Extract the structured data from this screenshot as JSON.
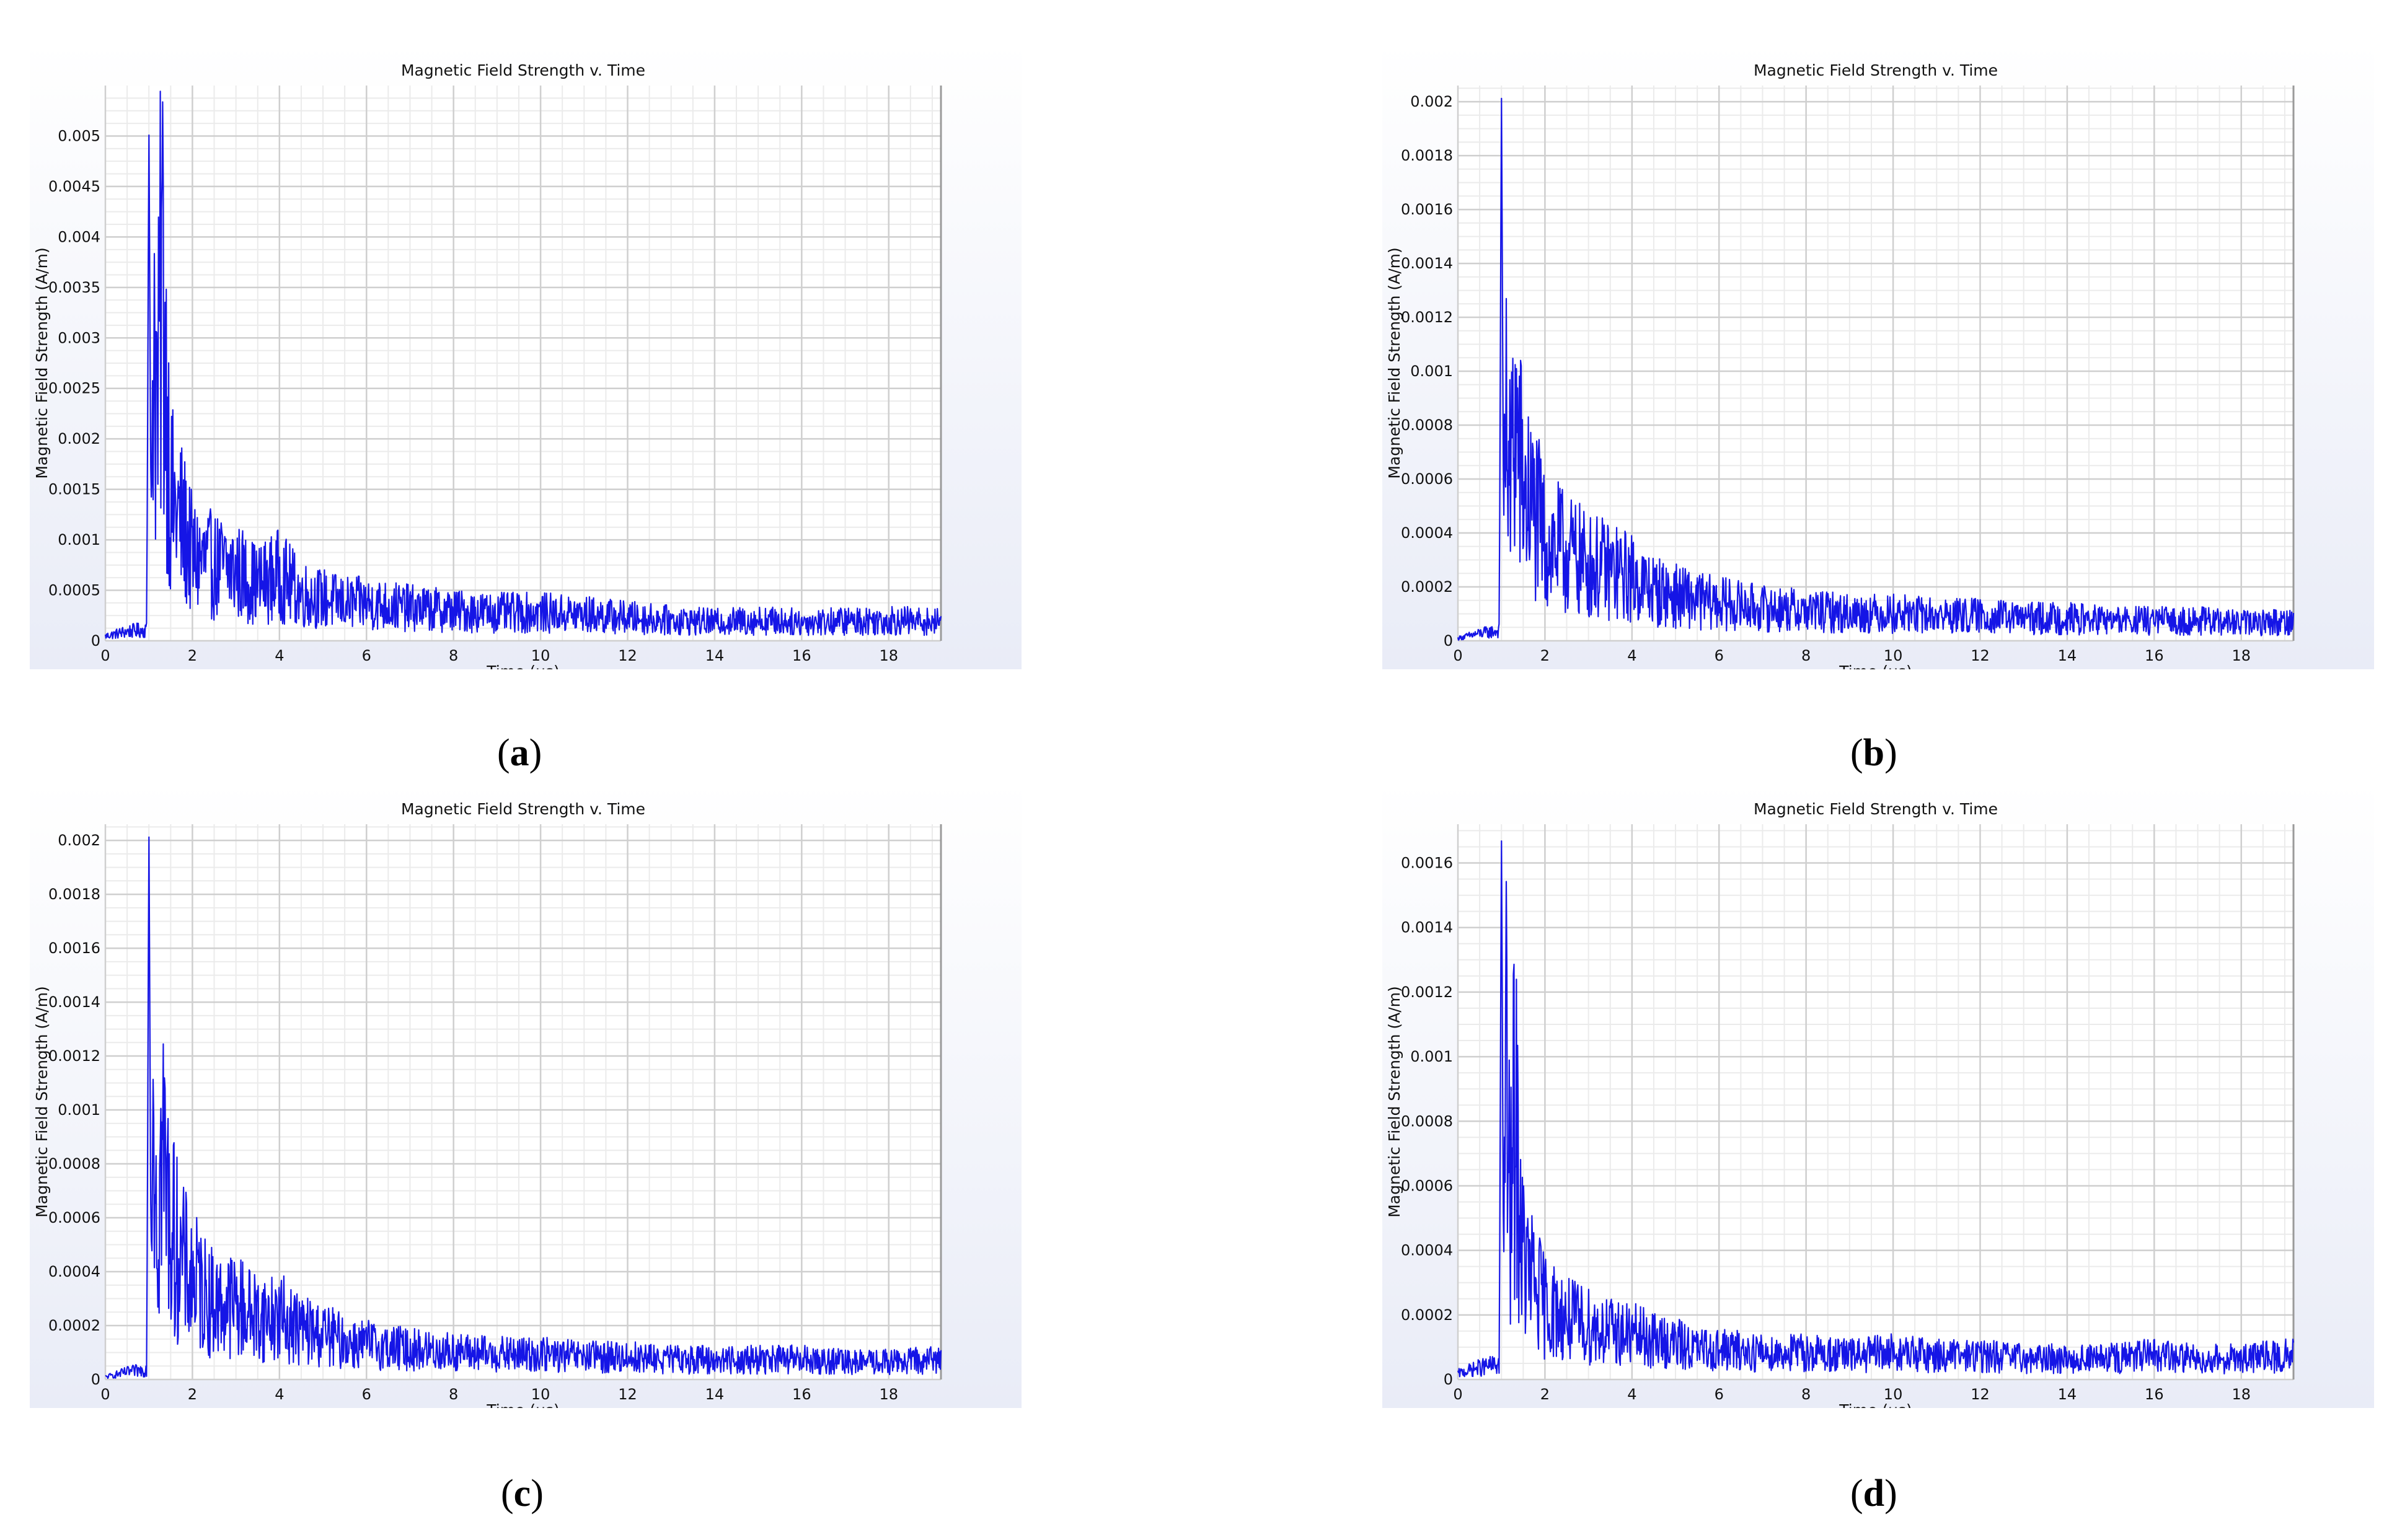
{
  "colors": {
    "line": "#1515e6",
    "panel_bg_top": "#ffffff",
    "panel_bg_bottom": "#e9ecf7",
    "grid_major": "#cfcfcf",
    "grid_minor": "#ebebeb"
  },
  "chart_data": [
    {
      "type": "line",
      "title": "Magnetic Field Strength v. Time",
      "xlabel": "Time (us)",
      "ylabel": "Magnetic Field Strength (A/m)",
      "xlim": [
        0,
        19.2
      ],
      "ylim": [
        0,
        0.0055
      ],
      "xticks": [
        "0",
        "2",
        "4",
        "6",
        "8",
        "10",
        "12",
        "14",
        "16",
        "18"
      ],
      "yticks": [
        "0",
        "0.0005",
        "0.001",
        "0.0015",
        "0.002",
        "0.0025",
        "0.003",
        "0.0035",
        "0.004",
        "0.0045",
        "0.005"
      ],
      "grid": true,
      "series": [
        {
          "x": [
            0,
            0.5,
            0.95,
            1.0,
            1.05,
            1.1,
            1.2,
            1.3,
            1.5,
            1.8,
            2.0,
            2.5,
            3.0,
            3.5,
            4.0,
            4.5,
            5.0,
            5.5,
            6,
            7,
            8,
            9,
            10,
            11,
            12,
            13,
            14,
            15,
            16,
            17,
            18,
            19.2
          ],
          "y": [
            5e-05,
            0.0001,
            0.00012,
            0.0051,
            0.0011,
            0.0038,
            0.0023,
            0.0041,
            0.0015,
            0.0012,
            0.0009,
            0.0008,
            0.00075,
            0.0006,
            0.0007,
            0.0005,
            0.00045,
            0.0004,
            0.0004,
            0.00035,
            0.00032,
            0.0003,
            0.0003,
            0.00028,
            0.00025,
            0.00022,
            0.0002,
            0.00022,
            0.0002,
            0.00021,
            0.00022,
            0.0002
          ]
        }
      ],
      "caption": "(a)"
    },
    {
      "type": "line",
      "title": "Magnetic Field Strength v. Time",
      "xlabel": "Time (us)",
      "ylabel": "Magnetic Field Strength (A/m)",
      "xlim": [
        0,
        19.2
      ],
      "ylim": [
        0,
        0.00206
      ],
      "xticks": [
        "0",
        "2",
        "4",
        "6",
        "8",
        "10",
        "12",
        "14",
        "16",
        "18"
      ],
      "yticks": [
        "0",
        "0.0002",
        "0.0004",
        "0.0006",
        "0.0008",
        "0.001",
        "0.0012",
        "0.0014",
        "0.0016",
        "0.0018",
        "0.002"
      ],
      "grid": true,
      "series": [
        {
          "x": [
            0,
            0.5,
            0.95,
            1.0,
            1.05,
            1.1,
            1.2,
            1.3,
            1.5,
            1.8,
            2.0,
            2.5,
            3.0,
            3.5,
            4.0,
            4.5,
            5.0,
            5.5,
            6,
            7,
            8,
            9,
            10,
            11,
            12,
            13,
            14,
            15,
            16,
            17,
            18,
            19.2
          ],
          "y": [
            1e-05,
            3e-05,
            4e-05,
            0.00205,
            0.0004,
            0.00095,
            0.0006,
            0.0009,
            0.0006,
            0.0005,
            0.0004,
            0.00035,
            0.0003,
            0.00028,
            0.00025,
            0.0002,
            0.00018,
            0.00016,
            0.00015,
            0.00013,
            0.00012,
            0.00011,
            0.00011,
            0.0001,
            0.0001,
            9e-05,
            9e-05,
            8e-05,
            8e-05,
            8e-05,
            7e-05,
            8e-05
          ]
        }
      ],
      "caption": "(b)"
    },
    {
      "type": "line",
      "title": "Magnetic Field Strength v. Time",
      "xlabel": "Time (us)",
      "ylabel": "Magnetic Field Strength (A/m)",
      "xlim": [
        0,
        19.2
      ],
      "ylim": [
        0,
        0.00206
      ],
      "xticks": [
        "0",
        "2",
        "4",
        "6",
        "8",
        "10",
        "12",
        "14",
        "16",
        "18"
      ],
      "yticks": [
        "0",
        "0.0002",
        "0.0004",
        "0.0006",
        "0.0008",
        "0.001",
        "0.0012",
        "0.0014",
        "0.0016",
        "0.0018",
        "0.002"
      ],
      "grid": true,
      "series": [
        {
          "x": [
            0,
            0.5,
            0.95,
            1.0,
            1.05,
            1.1,
            1.2,
            1.3,
            1.5,
            1.8,
            2.0,
            2.5,
            3.0,
            3.5,
            4.0,
            4.5,
            5.0,
            5.5,
            6,
            7,
            8,
            9,
            10,
            11,
            12,
            13,
            14,
            15,
            16,
            17,
            18,
            19.2
          ],
          "y": [
            1e-05,
            3e-05,
            4e-05,
            0.00205,
            0.0004,
            0.00135,
            0.0006,
            0.00095,
            0.0006,
            0.00045,
            0.0004,
            0.0003,
            0.0003,
            0.00025,
            0.00025,
            0.0002,
            0.00018,
            0.00015,
            0.00014,
            0.00012,
            0.00011,
            0.0001,
            0.0001,
            9e-05,
            9e-05,
            8e-05,
            8e-05,
            8e-05,
            8e-05,
            7e-05,
            7e-05,
            8e-05
          ]
        }
      ],
      "caption": "(c)"
    },
    {
      "type": "line",
      "title": "Magnetic Field Strength v. Time",
      "xlabel": "Time (us)",
      "ylabel": "Magnetic Field Strength (A/m)",
      "xlim": [
        0,
        19.2
      ],
      "ylim": [
        0,
        0.00172
      ],
      "xticks": [
        "0",
        "2",
        "4",
        "6",
        "8",
        "10",
        "12",
        "14",
        "16",
        "18"
      ],
      "yticks": [
        "0",
        "0.0002",
        "0.0004",
        "0.0006",
        "0.0008",
        "0.001",
        "0.0012",
        "0.0014",
        "0.0016"
      ],
      "grid": true,
      "series": [
        {
          "x": [
            0,
            0.5,
            0.95,
            1.0,
            1.05,
            1.1,
            1.2,
            1.3,
            1.5,
            1.8,
            2.0,
            2.5,
            3.0,
            3.5,
            4.0,
            4.5,
            5.0,
            5.5,
            6,
            7,
            8,
            9,
            10,
            11,
            12,
            13,
            14,
            15,
            16,
            17,
            18,
            19.2
          ],
          "y": [
            2e-05,
            4e-05,
            5e-05,
            0.0017,
            0.0003,
            0.0011,
            0.0005,
            0.0009,
            0.0004,
            0.0003,
            0.00025,
            0.0002,
            0.00018,
            0.00016,
            0.00015,
            0.00013,
            0.00012,
            0.0001,
            0.0001,
            9e-05,
            9e-05,
            8e-05,
            9e-05,
            8e-05,
            8e-05,
            7e-05,
            7e-05,
            7e-05,
            8e-05,
            7e-05,
            7e-05,
            8e-05
          ]
        }
      ],
      "caption": "(d)"
    }
  ]
}
